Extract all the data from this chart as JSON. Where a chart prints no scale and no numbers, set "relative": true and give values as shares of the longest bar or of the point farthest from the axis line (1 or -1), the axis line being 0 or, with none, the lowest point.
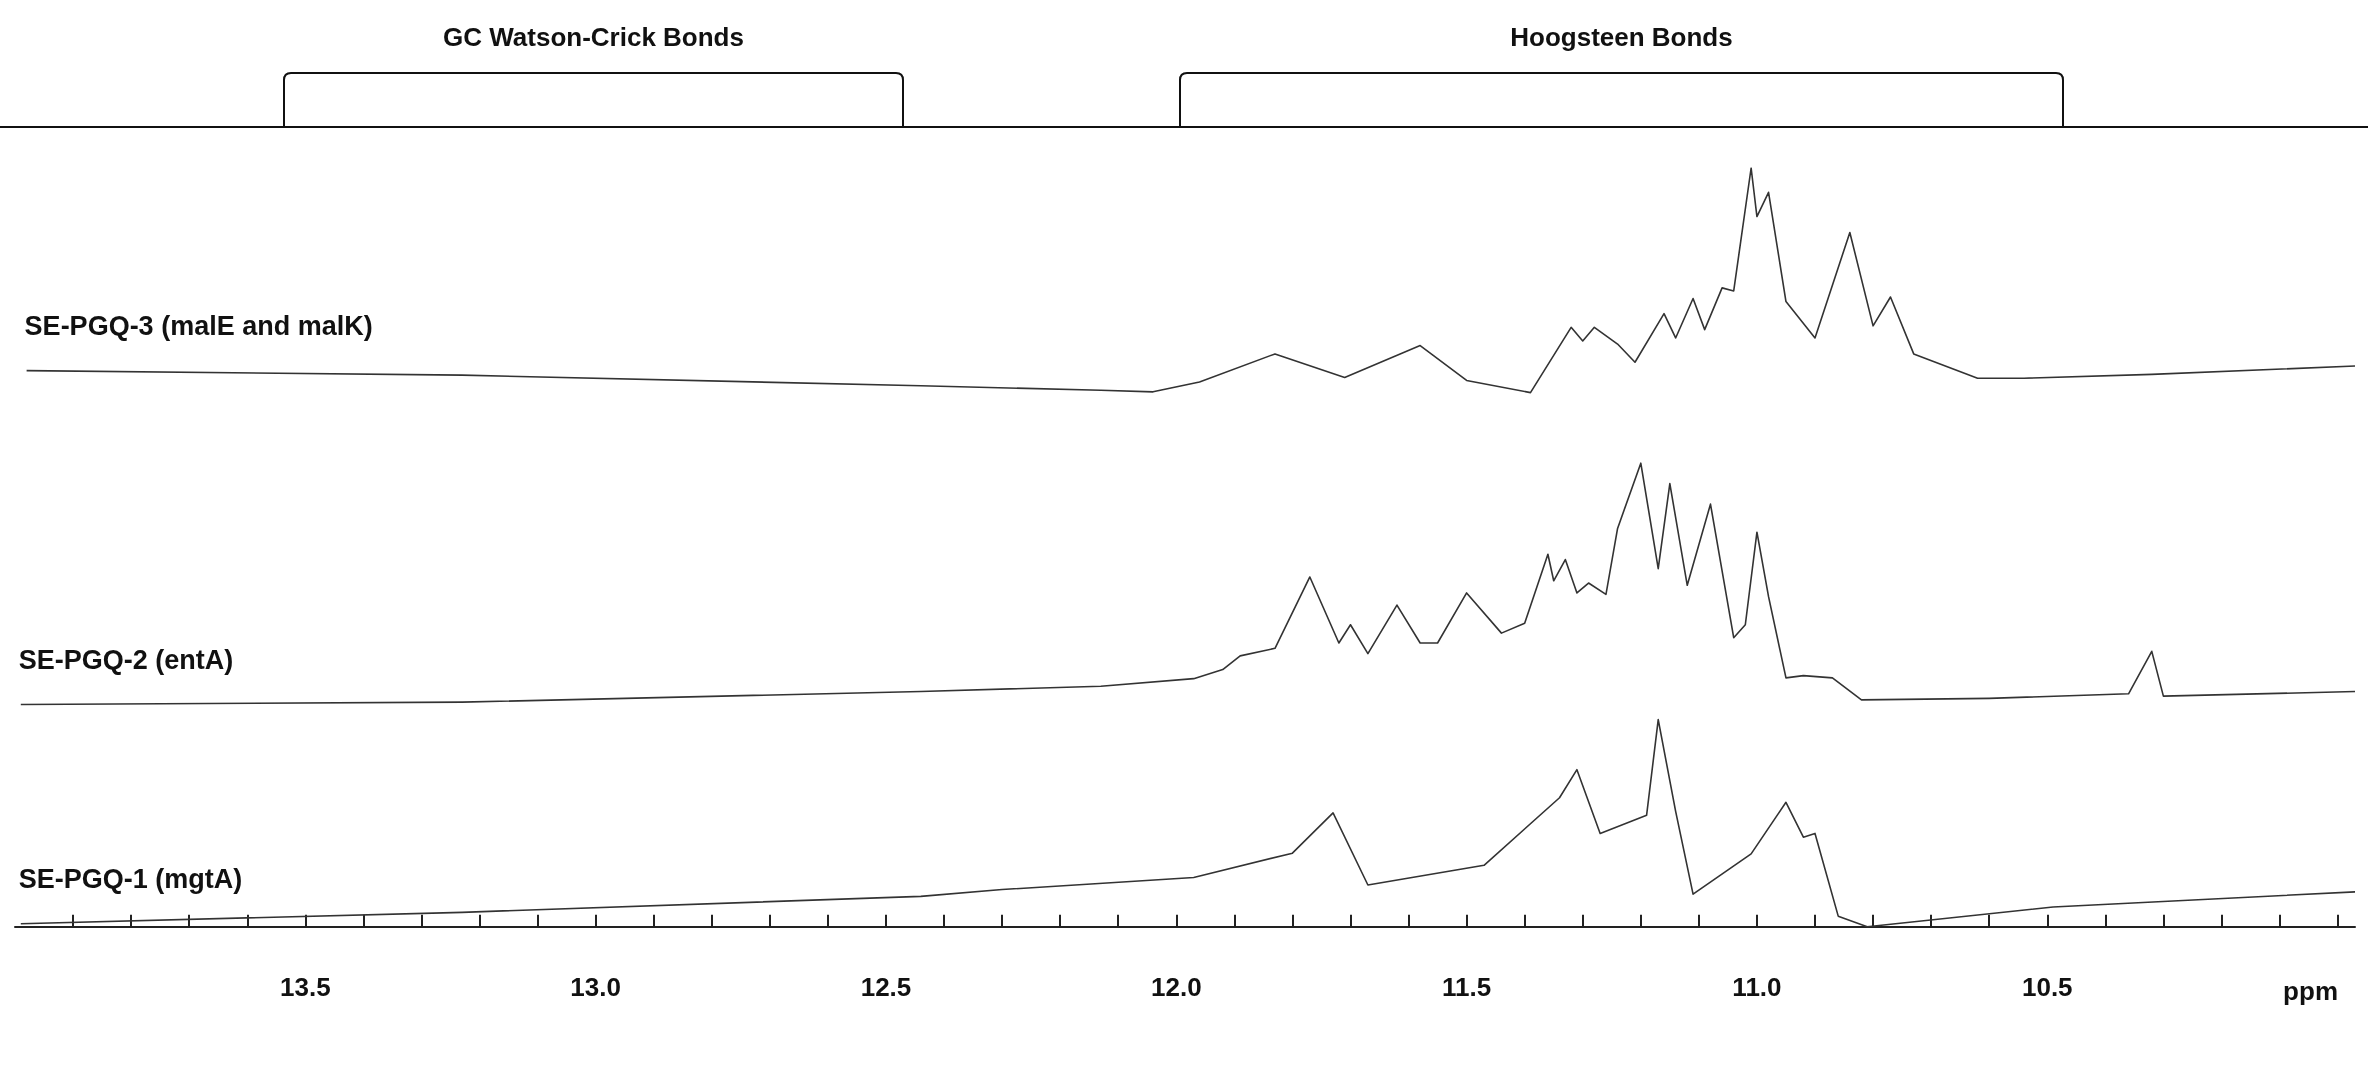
{
  "chart_data": {
    "type": "line",
    "relative": true,
    "xlabel": "ppm",
    "xlim": [
      14.0,
      9.97
    ],
    "xticks": [
      {
        "value": 13.9,
        "label": null
      },
      {
        "value": 13.8,
        "label": null
      },
      {
        "value": 13.7,
        "label": null
      },
      {
        "value": 13.6,
        "label": null
      },
      {
        "value": 13.5,
        "label": "13.5"
      },
      {
        "value": 13.4,
        "label": null
      },
      {
        "value": 13.3,
        "label": null
      },
      {
        "value": 13.2,
        "label": null
      },
      {
        "value": 13.1,
        "label": null
      },
      {
        "value": 13.0,
        "label": "13.0"
      },
      {
        "value": 12.9,
        "label": null
      },
      {
        "value": 12.8,
        "label": null
      },
      {
        "value": 12.7,
        "label": null
      },
      {
        "value": 12.6,
        "label": null
      },
      {
        "value": 12.5,
        "label": "12.5"
      },
      {
        "value": 12.4,
        "label": null
      },
      {
        "value": 12.3,
        "label": null
      },
      {
        "value": 12.2,
        "label": null
      },
      {
        "value": 12.1,
        "label": null
      },
      {
        "value": 12.0,
        "label": "12.0"
      },
      {
        "value": 11.9,
        "label": null
      },
      {
        "value": 11.8,
        "label": null
      },
      {
        "value": 11.7,
        "label": null
      },
      {
        "value": 11.6,
        "label": null
      },
      {
        "value": 11.5,
        "label": "11.5"
      },
      {
        "value": 11.4,
        "label": null
      },
      {
        "value": 11.3,
        "label": null
      },
      {
        "value": 11.2,
        "label": null
      },
      {
        "value": 11.1,
        "label": null
      },
      {
        "value": 11.0,
        "label": "11.0"
      },
      {
        "value": 10.9,
        "label": null
      },
      {
        "value": 10.8,
        "label": null
      },
      {
        "value": 10.7,
        "label": null
      },
      {
        "value": 10.6,
        "label": null
      },
      {
        "value": 10.5,
        "label": "10.5"
      },
      {
        "value": 10.4,
        "label": null
      },
      {
        "value": 10.3,
        "label": null
      },
      {
        "value": 10.2,
        "label": null
      },
      {
        "value": 10.1,
        "label": null
      },
      {
        "value": 10.0,
        "label": null
      }
    ],
    "annotations": [
      "GC Watson-Crick Bonds",
      "Hoogsteen Bonds"
    ],
    "series": [
      {
        "name": "SE-PGQ-3 (malE and malK)",
        "color": "#333333",
        "x": [
          13.98,
          13.23,
          12.44,
          12.13,
          12.04,
          11.96,
          11.83,
          11.71,
          11.58,
          11.5,
          11.39,
          11.32,
          11.3,
          11.28,
          11.24,
          11.21,
          11.16,
          11.14,
          11.11,
          11.09,
          11.06,
          11.04,
          11.01,
          11.0,
          10.98,
          10.95,
          10.9,
          10.84,
          10.8,
          10.77,
          10.73,
          10.62,
          10.54,
          10.32,
          9.97
        ],
        "values": [
          0.733,
          0.727,
          0.713,
          0.707,
          0.705,
          0.718,
          0.755,
          0.724,
          0.766,
          0.72,
          0.704,
          0.79,
          0.772,
          0.79,
          0.768,
          0.744,
          0.808,
          0.776,
          0.828,
          0.787,
          0.842,
          0.838,
          1.0,
          0.936,
          0.968,
          0.824,
          0.776,
          0.915,
          0.792,
          0.83,
          0.755,
          0.723,
          0.723,
          0.728,
          0.739
        ]
      },
      {
        "name": "SE-PGQ-2 (entA)",
        "color": "#333333",
        "x": [
          13.99,
          13.23,
          12.44,
          12.13,
          11.97,
          11.92,
          11.89,
          11.83,
          11.77,
          11.72,
          11.7,
          11.67,
          11.62,
          11.58,
          11.55,
          11.5,
          11.44,
          11.4,
          11.36,
          11.35,
          11.33,
          11.31,
          11.29,
          11.26,
          11.24,
          11.2,
          11.17,
          11.15,
          11.12,
          11.08,
          11.04,
          11.02,
          11.0,
          10.98,
          10.95,
          10.92,
          10.87,
          10.82,
          10.6,
          10.36,
          10.32,
          10.3,
          9.97
        ],
        "values": [
          0.293,
          0.296,
          0.31,
          0.317,
          0.327,
          0.339,
          0.357,
          0.367,
          0.461,
          0.374,
          0.398,
          0.36,
          0.424,
          0.374,
          0.374,
          0.44,
          0.387,
          0.4,
          0.491,
          0.456,
          0.484,
          0.44,
          0.453,
          0.438,
          0.525,
          0.611,
          0.472,
          0.584,
          0.45,
          0.557,
          0.381,
          0.398,
          0.52,
          0.435,
          0.328,
          0.331,
          0.328,
          0.299,
          0.301,
          0.307,
          0.363,
          0.304,
          0.31
        ]
      },
      {
        "name": "SE-PGQ-1 (mgtA)",
        "color": "#333333",
        "x": [
          13.99,
          13.23,
          12.44,
          12.3,
          11.97,
          11.8,
          11.73,
          11.67,
          11.47,
          11.34,
          11.31,
          11.27,
          11.19,
          11.17,
          11.14,
          11.11,
          11.01,
          10.95,
          10.92,
          10.9,
          10.86,
          10.81,
          10.49,
          9.97
        ],
        "values": [
          0.004,
          0.019,
          0.04,
          0.049,
          0.065,
          0.097,
          0.15,
          0.055,
          0.081,
          0.17,
          0.207,
          0.123,
          0.147,
          0.273,
          0.152,
          0.043,
          0.096,
          0.164,
          0.118,
          0.123,
          0.014,
          0.0,
          0.026,
          0.046
        ]
      }
    ]
  }
}
